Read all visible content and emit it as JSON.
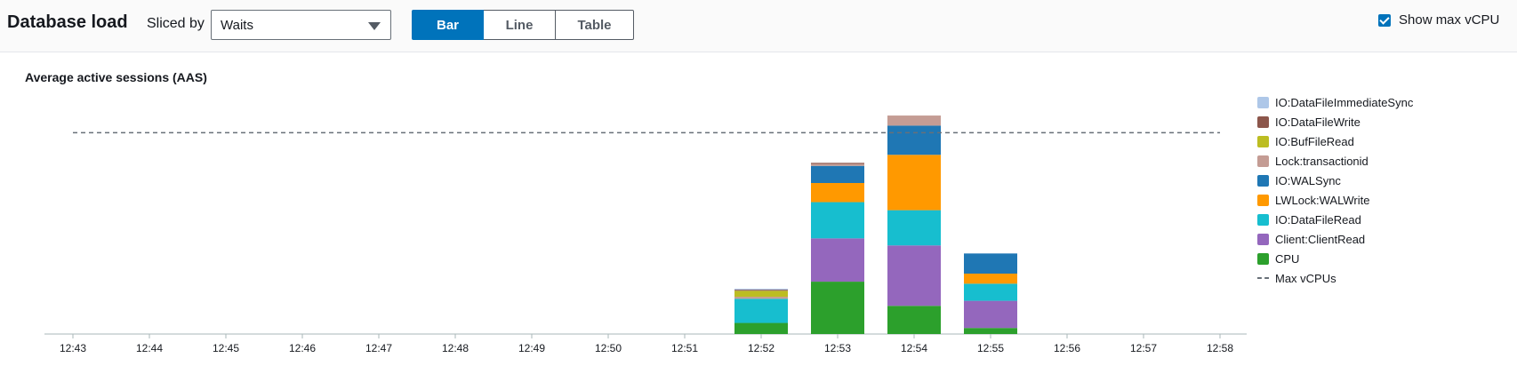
{
  "header": {
    "title": "Database load",
    "sliced_by_label": "Sliced by",
    "sliced_by_value": "Waits",
    "view_tabs": [
      {
        "label": "Bar",
        "active": true
      },
      {
        "label": "Line",
        "active": false
      },
      {
        "label": "Table",
        "active": false
      }
    ],
    "show_max_vcpu_label": "Show max vCPU",
    "show_max_vcpu_checked": true
  },
  "chart_data": {
    "type": "bar",
    "stacked": true,
    "title": "Average active sessions (AAS)",
    "categories": [
      "12:43",
      "12:44",
      "12:45",
      "12:46",
      "12:47",
      "12:48",
      "12:49",
      "12:50",
      "12:51",
      "12:52",
      "12:53",
      "12:54",
      "12:55",
      "12:56",
      "12:57",
      "12:58"
    ],
    "ylim": [
      0,
      2.4
    ],
    "max_vcpu": 2.0,
    "legend_position": "right",
    "series": [
      {
        "name": "CPU",
        "color": "#2ca02c",
        "values": [
          0,
          0,
          0,
          0,
          0,
          0,
          0,
          0,
          0,
          0.11,
          0.52,
          0.28,
          0.06,
          0,
          0,
          0
        ]
      },
      {
        "name": "Client:ClientRead",
        "color": "#9467bd",
        "values": [
          0,
          0,
          0,
          0,
          0,
          0,
          0,
          0,
          0,
          0,
          0.43,
          0.6,
          0.27,
          0,
          0,
          0
        ]
      },
      {
        "name": "IO:DataFileRead",
        "color": "#17becf",
        "values": [
          0,
          0,
          0,
          0,
          0,
          0,
          0,
          0,
          0,
          0.24,
          0.36,
          0.35,
          0.17,
          0,
          0,
          0
        ]
      },
      {
        "name": "LWLock:WALWrite",
        "color": "#ff9900",
        "values": [
          0,
          0,
          0,
          0,
          0,
          0,
          0,
          0,
          0,
          0,
          0.19,
          0.55,
          0.1,
          0,
          0,
          0
        ]
      },
      {
        "name": "IO:WALSync",
        "color": "#1f77b4",
        "values": [
          0,
          0,
          0,
          0,
          0,
          0,
          0,
          0,
          0,
          0,
          0.17,
          0.29,
          0.2,
          0,
          0,
          0
        ]
      },
      {
        "name": "Lock:transactionid",
        "color": "#c49c94",
        "values": [
          0,
          0,
          0,
          0,
          0,
          0,
          0,
          0,
          0,
          0.02,
          0.02,
          0.1,
          0,
          0,
          0,
          0
        ]
      },
      {
        "name": "IO:BufFileRead",
        "color": "#bcbd22",
        "values": [
          0,
          0,
          0,
          0,
          0,
          0,
          0,
          0,
          0,
          0.06,
          0,
          0,
          0,
          0,
          0,
          0
        ]
      },
      {
        "name": "IO:DataFileWrite",
        "color": "#8c564b",
        "values": [
          0,
          0,
          0,
          0,
          0,
          0,
          0,
          0,
          0,
          0.01,
          0.01,
          0,
          0,
          0,
          0,
          0
        ]
      },
      {
        "name": "IO:DataFileImmediateSync",
        "color": "#aec7e8",
        "values": [
          0,
          0,
          0,
          0,
          0,
          0,
          0,
          0,
          0,
          0.01,
          0,
          0,
          0,
          0,
          0,
          0
        ]
      }
    ],
    "legend": [
      {
        "name": "IO:DataFileImmediateSync",
        "color": "#aec7e8"
      },
      {
        "name": "IO:DataFileWrite",
        "color": "#8c564b"
      },
      {
        "name": "IO:BufFileRead",
        "color": "#bcbd22"
      },
      {
        "name": "Lock:transactionid",
        "color": "#c49c94"
      },
      {
        "name": "IO:WALSync",
        "color": "#1f77b4"
      },
      {
        "name": "LWLock:WALWrite",
        "color": "#ff9900"
      },
      {
        "name": "IO:DataFileRead",
        "color": "#17becf"
      },
      {
        "name": "Client:ClientRead",
        "color": "#9467bd"
      },
      {
        "name": "CPU",
        "color": "#2ca02c"
      }
    ],
    "max_line_label": "Max vCPUs",
    "max_line_color": "#687078"
  }
}
